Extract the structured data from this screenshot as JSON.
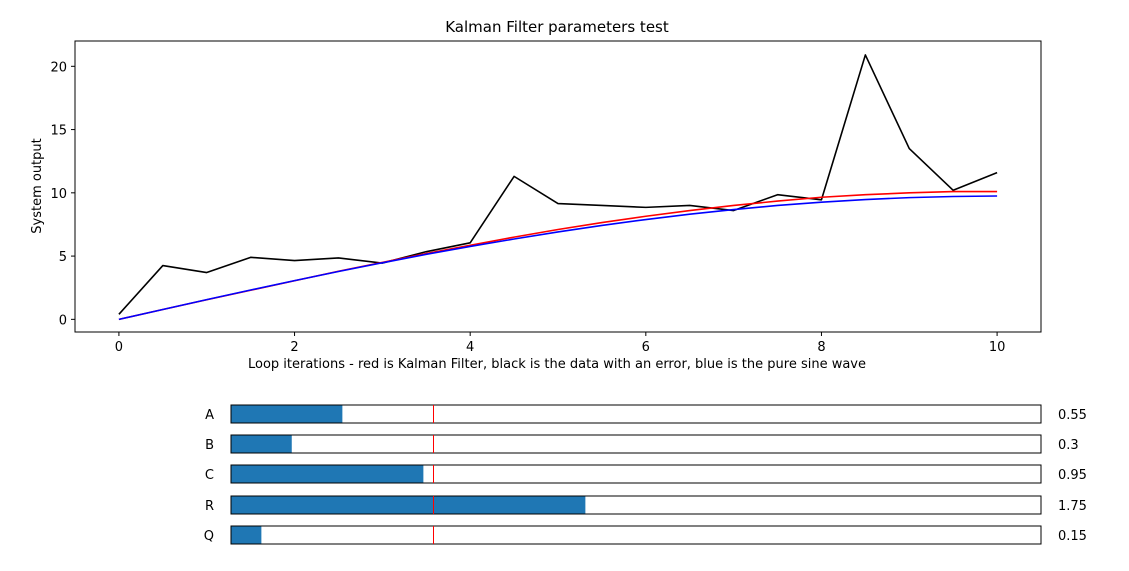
{
  "chart_data": {
    "type": "line",
    "title": "Kalman Filter parameters test",
    "xlabel": "Loop iterations - red is Kalman Filter, black is the data with an error, blue is the pure sine wave",
    "ylabel": "System output",
    "xlim": [
      -0.5,
      10.5
    ],
    "ylim": [
      -1,
      22
    ],
    "xticks": [
      0,
      2,
      4,
      6,
      8,
      10
    ],
    "yticks": [
      0,
      5,
      10,
      15,
      20
    ],
    "grid": false,
    "x": [
      0,
      0.5,
      1,
      1.5,
      2,
      2.5,
      3,
      3.5,
      4,
      4.5,
      5,
      5.5,
      6,
      6.5,
      7,
      7.5,
      8,
      8.5,
      9,
      9.5,
      10
    ],
    "series": [
      {
        "color": "#000000",
        "values": [
          0.4,
          4.25,
          3.7,
          4.9,
          4.65,
          4.85,
          4.45,
          5.35,
          6.05,
          11.3,
          9.15,
          9.0,
          8.85,
          9.0,
          8.6,
          9.85,
          9.45,
          20.9,
          13.5,
          10.2,
          11.6
        ]
      },
      {
        "color": "#ff0000",
        "values": [
          0.0,
          0.78,
          1.55,
          2.3,
          3.05,
          3.8,
          4.5,
          5.2,
          5.85,
          6.5,
          7.1,
          7.65,
          8.15,
          8.6,
          9.0,
          9.35,
          9.65,
          9.85,
          10.0,
          10.1,
          10.1
        ]
      },
      {
        "color": "#0000ff",
        "values": [
          0.0,
          0.78,
          1.56,
          2.32,
          3.06,
          3.78,
          4.47,
          5.14,
          5.76,
          6.35,
          6.91,
          7.42,
          7.89,
          8.31,
          8.68,
          9.0,
          9.26,
          9.47,
          9.62,
          9.71,
          9.75
        ]
      }
    ]
  },
  "sliders": {
    "valmax": 4.0,
    "valinit": 1.0,
    "fill_color": "#1f77b4",
    "init_line_color": "#ff0000",
    "items": [
      {
        "label": "A",
        "value": 0.55,
        "value_text": "0.55"
      },
      {
        "label": "B",
        "value": 0.3,
        "value_text": "0.3"
      },
      {
        "label": "C",
        "value": 0.95,
        "value_text": "0.95"
      },
      {
        "label": "R",
        "value": 1.75,
        "value_text": "1.75"
      },
      {
        "label": "Q",
        "value": 0.15,
        "value_text": "0.15"
      }
    ]
  }
}
